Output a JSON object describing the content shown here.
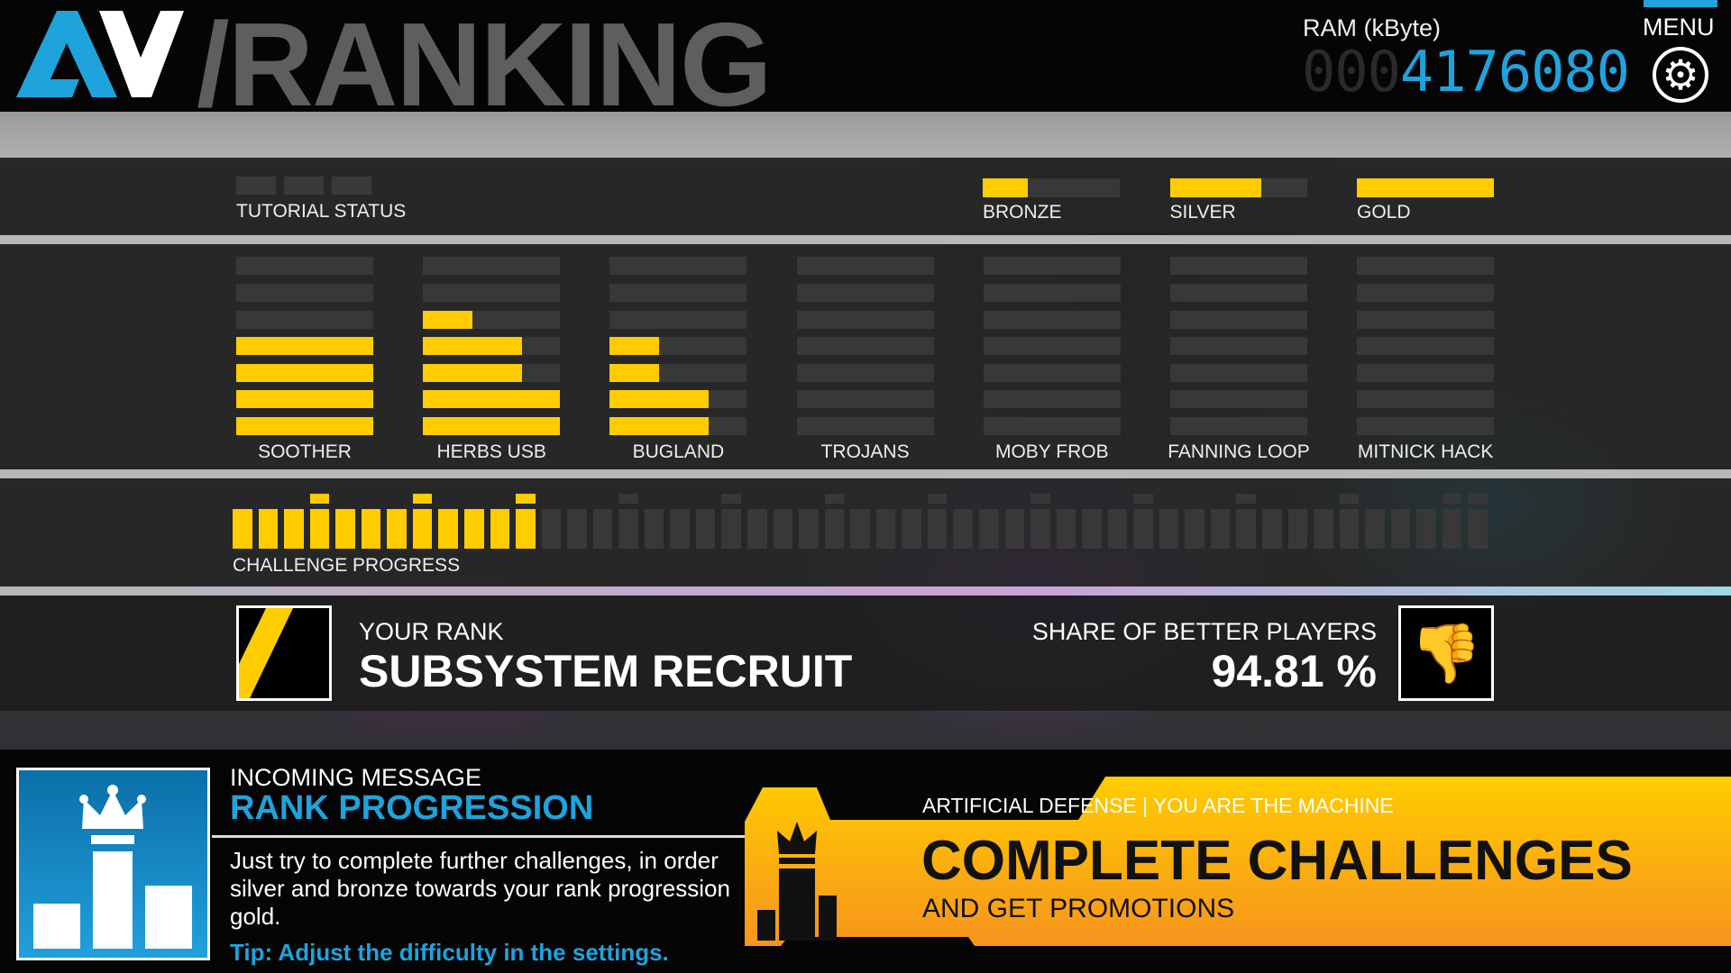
{
  "header": {
    "title": "/RANKING",
    "ram_label": "RAM (kByte)",
    "ram_digits": [
      "0",
      "0",
      "0",
      "4",
      "1",
      "7",
      "6",
      "0",
      "8",
      "0"
    ],
    "ram_lit_from": 3,
    "menu_label": "MENU",
    "menu_icon": "gear-icon"
  },
  "tutorial": {
    "label": "TUTORIAL STATUS",
    "boxes_completed": 0,
    "boxes_total": 3
  },
  "medals": [
    {
      "label": "BRONZE",
      "fill": 0.33
    },
    {
      "label": "SILVER",
      "fill": 0.67
    },
    {
      "label": "GOLD",
      "fill": 1.0
    }
  ],
  "challenges": [
    {
      "label": "SOOTHER",
      "levels": [
        1,
        1,
        1,
        1,
        0,
        0,
        0
      ]
    },
    {
      "label": "HERBS USB",
      "levels": [
        1,
        1,
        0.72,
        0.72,
        0.36,
        0,
        0
      ]
    },
    {
      "label": "BUGLAND",
      "levels": [
        0.72,
        0.72,
        0.36,
        0.36,
        0,
        0,
        0
      ]
    },
    {
      "label": "TROJANS",
      "levels": [
        0,
        0,
        0,
        0,
        0,
        0,
        0
      ]
    },
    {
      "label": "MOBY FROB",
      "levels": [
        0,
        0,
        0,
        0,
        0,
        0,
        0
      ]
    },
    {
      "label": "FANNING LOOP",
      "levels": [
        0,
        0,
        0,
        0,
        0,
        0,
        0
      ]
    },
    {
      "label": "MITNICK HACK",
      "levels": [
        0,
        0,
        0,
        0,
        0,
        0,
        0
      ]
    }
  ],
  "progress": {
    "label": "CHALLENGE PROGRESS",
    "completed": 12,
    "total": 49
  },
  "rank": {
    "label": "YOUR RANK",
    "value": "SUBSYSTEM RECRUIT",
    "share_label": "SHARE OF BETTER PLAYERS",
    "share_value": "94.81 %",
    "share_icon": "thumbs-down-icon"
  },
  "message": {
    "kicker": "INCOMING MESSAGE",
    "title": "RANK PROGRESSION",
    "body": [
      "Just try to complete further challenges, in order",
      "silver and bronze towards your rank progression",
      "gold."
    ],
    "tip": "Tip: Adjust the difficulty in the settings."
  },
  "banner": {
    "tagline": "ARTIFICIAL DEFENSE | YOU ARE THE MACHINE",
    "headline": "COMPLETE CHALLENGES",
    "sub": "AND GET PROMOTIONS"
  },
  "colors": {
    "accent_yellow": "#ffcc00",
    "accent_blue": "#1fa3dc",
    "banner_orange": "#f7941d"
  }
}
